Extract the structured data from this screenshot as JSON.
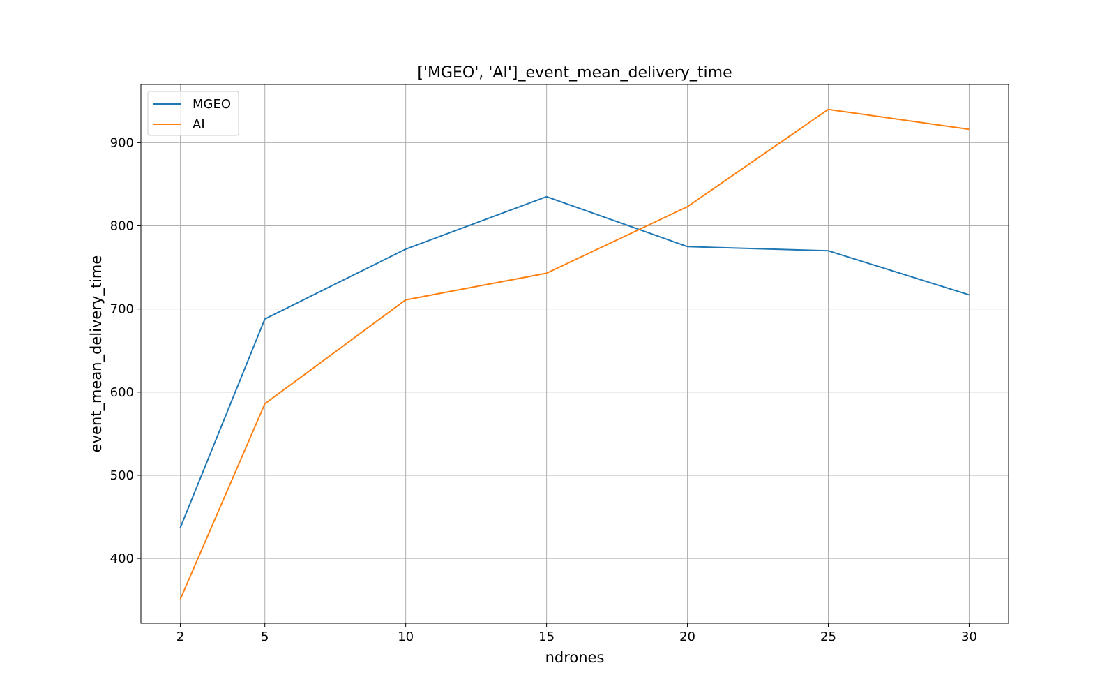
{
  "chart_data": {
    "type": "line",
    "title": "['MGEO', 'AI']_event_mean_delivery_time",
    "xlabel": "ndrones",
    "ylabel": "event_mean_delivery_time",
    "x": [
      2,
      5,
      10,
      15,
      20,
      25,
      30
    ],
    "xticks": [
      "2",
      "5",
      "10",
      "15",
      "20",
      "25",
      "30"
    ],
    "yticks": [
      "400",
      "500",
      "600",
      "700",
      "800",
      "900"
    ],
    "ytick_values": [
      400,
      500,
      600,
      700,
      800,
      900
    ],
    "xlim": [
      0.6,
      31.4
    ],
    "ylim": [
      322,
      970
    ],
    "grid": true,
    "legend_position": "upper-left",
    "series": [
      {
        "name": "MGEO",
        "color": "#1f77b4",
        "values": [
          437,
          688,
          772,
          835,
          775,
          770,
          717
        ]
      },
      {
        "name": "AI",
        "color": "#ff7f0e",
        "values": [
          351,
          586,
          711,
          743,
          823,
          940,
          916
        ]
      }
    ]
  }
}
